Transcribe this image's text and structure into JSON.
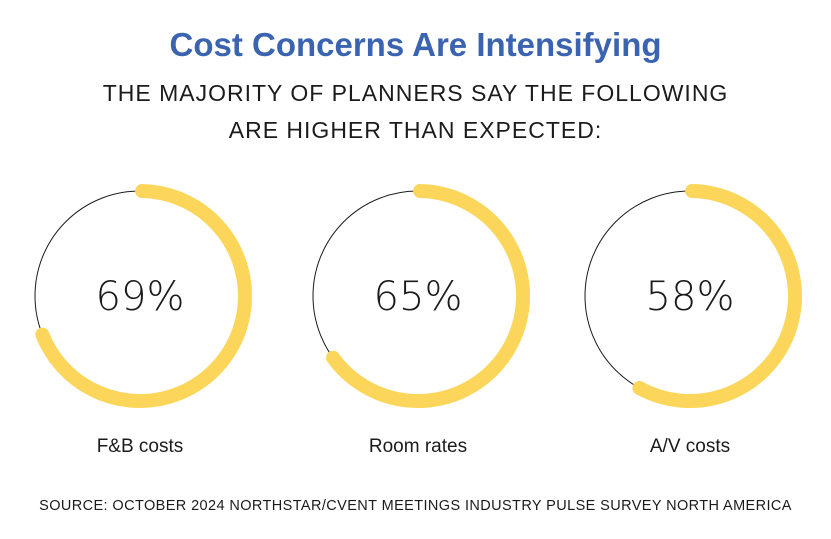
{
  "title": "Cost Concerns Are Intensifying",
  "subtitle_line1": "THE MAJORITY OF PLANNERS SAY THE FOLLOWING",
  "subtitle_line2": "ARE HIGHER THAN EXPECTED:",
  "source": "SOURCE: OCTOBER 2024 NORTHSTAR/CVENT MEETINGS INDUSTRY PULSE SURVEY NORTH AMERICA",
  "colors": {
    "accent": "#fcd65a",
    "title": "#3a63b0",
    "track": "#1b1b1b"
  },
  "chart_data": {
    "type": "pie",
    "items": [
      {
        "label": "F&B costs",
        "value": 69,
        "display": "69%"
      },
      {
        "label": "Room rates",
        "value": 65,
        "display": "65%"
      },
      {
        "label": "A/V costs",
        "value": 58,
        "display": "58%"
      }
    ]
  }
}
